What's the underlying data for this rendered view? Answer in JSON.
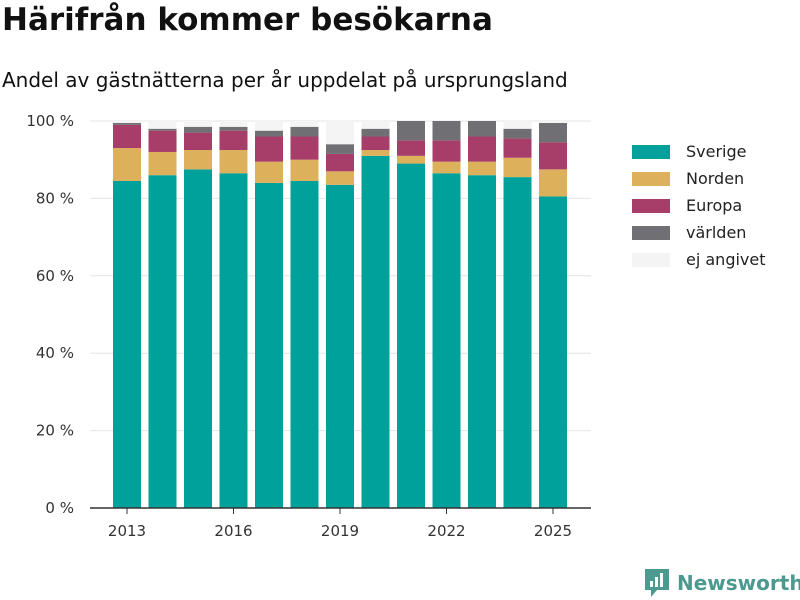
{
  "header": {
    "title": "Härifrån kommer besökarna",
    "subtitle": "Andel av gästnätterna per år uppdelat på ursprungsland"
  },
  "brand": {
    "name": "Newsworthy",
    "icon": "newsworthy-logo-icon"
  },
  "colors": {
    "Sverige": "#00a19a",
    "Norden": "#ddb05c",
    "Europa": "#a63e69",
    "världen": "#6f6f74",
    "ej angivet": "#f4f4f4"
  },
  "chart_data": {
    "type": "bar",
    "stacked": true,
    "title": "",
    "xlabel": "",
    "ylabel": "",
    "x": [
      2013,
      2014,
      2015,
      2016,
      2017,
      2018,
      2019,
      2020,
      2021,
      2022,
      2023,
      2024,
      2025
    ],
    "xticks": [
      "2013",
      "2016",
      "2019",
      "2022",
      "2025"
    ],
    "yticks": [
      "0 %",
      "20 %",
      "40 %",
      "60 %",
      "80 %",
      "100 %"
    ],
    "ylim": [
      0,
      100
    ],
    "grid": true,
    "legend_position": "right",
    "series": [
      {
        "name": "Sverige",
        "values": [
          84.5,
          86,
          87.5,
          86.5,
          84,
          84.5,
          83.5,
          91,
          89,
          86.5,
          86,
          85.5,
          80.5
        ]
      },
      {
        "name": "Norden",
        "values": [
          8.5,
          6,
          5,
          6,
          5.5,
          5.5,
          3.5,
          1.5,
          2,
          3,
          3.5,
          5,
          7
        ]
      },
      {
        "name": "Europa",
        "values": [
          6,
          5.5,
          4.5,
          5,
          6.5,
          6,
          4.5,
          3.5,
          4,
          5.5,
          6.5,
          5,
          7
        ]
      },
      {
        "name": "världen",
        "values": [
          0.5,
          0.5,
          1.5,
          1,
          1.5,
          2.5,
          2.5,
          2,
          5,
          5,
          4,
          2.5,
          5
        ]
      },
      {
        "name": "ej angivet",
        "values": [
          0.5,
          2,
          1.5,
          1.5,
          2.5,
          1.5,
          6,
          2,
          0,
          0,
          0,
          2,
          0.5
        ]
      }
    ]
  }
}
